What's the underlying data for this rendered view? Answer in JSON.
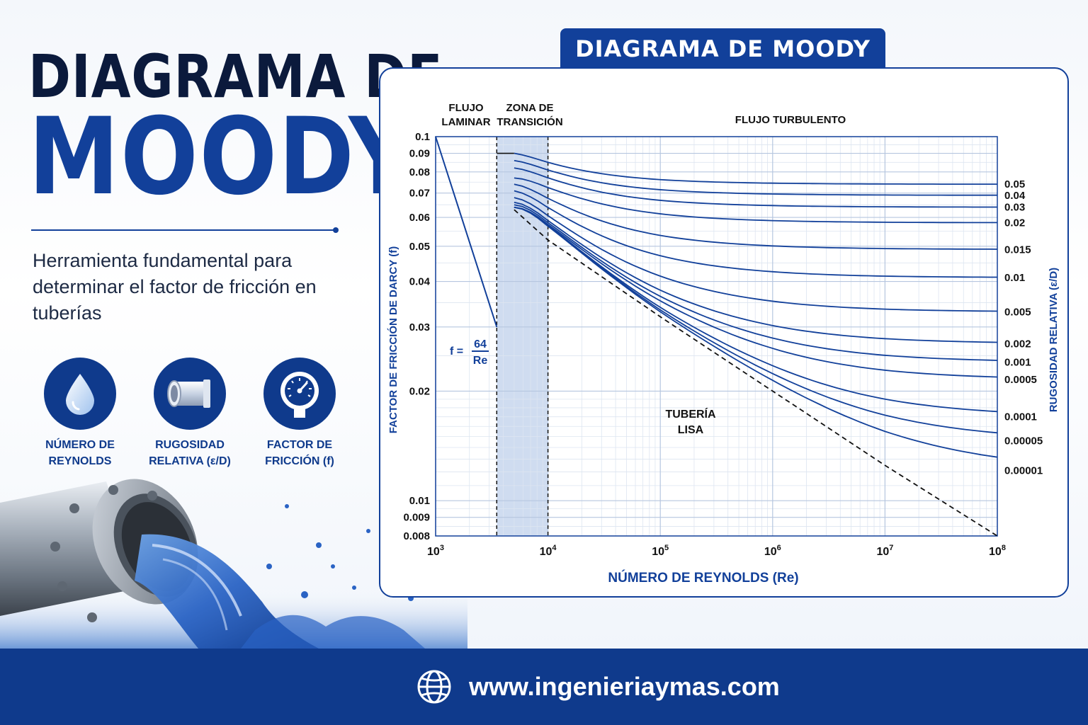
{
  "page": {
    "title_line1": "DIAGRAMA DE",
    "title_line2": "MOODY",
    "subtitle": "Herramienta fundamental para determinar el factor de fricción en tuberías"
  },
  "features": [
    {
      "label_1": "NÚMERO DE",
      "label_2": "REYNOLDS",
      "icon": "water-drop-icon"
    },
    {
      "label_1": "RUGOSIDAD",
      "label_2": "RELATIVA (ε/D)",
      "icon": "pipe-icon"
    },
    {
      "label_1": "FACTOR DE",
      "label_2": "FRICCIÓN (f)",
      "icon": "pressure-gauge-icon"
    }
  ],
  "footer": {
    "url": "www.ingenieriaymas.com",
    "icon": "globe-icon"
  },
  "colors": {
    "primary": "#12409a",
    "dark": "#0b1a3c",
    "transition_zone": "#cfdcf0"
  },
  "chart_data": {
    "type": "line",
    "title": "DIAGRAMA DE MOODY",
    "xlabel": "NÚMERO DE REYNOLDS (Re)",
    "ylabel": "FACTOR DE FRICCIÓN DE DARCY (f)",
    "right_label": "RUGOSIDAD RELATIVA (ε/D)",
    "x_scale": "log",
    "y_scale": "log",
    "xlim": [
      1000,
      100000000
    ],
    "ylim": [
      0.008,
      0.1
    ],
    "grid": true,
    "x_ticks": [
      {
        "value": 1000,
        "base": "10",
        "exp": "3"
      },
      {
        "value": 10000,
        "base": "10",
        "exp": "4"
      },
      {
        "value": 100000,
        "base": "10",
        "exp": "5"
      },
      {
        "value": 1000000,
        "base": "10",
        "exp": "6"
      },
      {
        "value": 10000000,
        "base": "10",
        "exp": "7"
      },
      {
        "value": 100000000,
        "base": "10",
        "exp": "8"
      }
    ],
    "y_ticks": [
      {
        "value": 0.1,
        "label": "0.1"
      },
      {
        "value": 0.09,
        "label": "0.09"
      },
      {
        "value": 0.08,
        "label": "0.08"
      },
      {
        "value": 0.07,
        "label": "0.07"
      },
      {
        "value": 0.06,
        "label": "0.06"
      },
      {
        "value": 0.05,
        "label": "0.05"
      },
      {
        "value": 0.04,
        "label": "0.04"
      },
      {
        "value": 0.03,
        "label": "0.03"
      },
      {
        "value": 0.02,
        "label": "0.02"
      },
      {
        "value": 0.01,
        "label": "0.01"
      },
      {
        "value": 0.009,
        "label": "0.009"
      },
      {
        "value": 0.008,
        "label": "0.008"
      }
    ],
    "zones": [
      {
        "name_1": "FLUJO",
        "name_2": "LAMINAR"
      },
      {
        "name_1": "ZONA DE",
        "name_2": "TRANSICIÓN",
        "re_from": 3500,
        "re_to": 10000
      },
      {
        "name_1": "FLUJO TURBULENTO",
        "name_2": ""
      }
    ],
    "laminar": {
      "formula_lhs": "f =",
      "formula_num": "64",
      "formula_den": "Re",
      "x": [
        1000,
        3500
      ],
      "y": [
        0.1,
        0.03
      ]
    },
    "smooth_pipe": {
      "label_1": "TUBERÍA",
      "label_2": "LISA",
      "x": [
        5000,
        10000,
        100000,
        1000000,
        10000000,
        100000000
      ],
      "y": [
        0.063,
        0.052,
        0.032,
        0.02,
        0.0125,
        0.008
      ]
    },
    "series": [
      {
        "name": "0.05",
        "re_start": 5000,
        "f_start": 0.09,
        "f_end": 0.074
      },
      {
        "name": "0.04",
        "re_start": 5000,
        "f_start": 0.086,
        "f_end": 0.069
      },
      {
        "name": "0.03",
        "re_start": 5000,
        "f_start": 0.082,
        "f_end": 0.064
      },
      {
        "name": "0.02",
        "re_start": 5000,
        "f_start": 0.077,
        "f_end": 0.058
      },
      {
        "name": "0.015",
        "re_start": 5000,
        "f_start": 0.074,
        "f_end": 0.049
      },
      {
        "name": "0.01",
        "re_start": 5000,
        "f_start": 0.071,
        "f_end": 0.041
      },
      {
        "name": "0.005",
        "re_start": 5000,
        "f_start": 0.068,
        "f_end": 0.033
      },
      {
        "name": "0.002",
        "re_start": 5000,
        "f_start": 0.066,
        "f_end": 0.027
      },
      {
        "name": "0.001",
        "re_start": 5000,
        "f_start": 0.065,
        "f_end": 0.024
      },
      {
        "name": "0.0005",
        "re_start": 5000,
        "f_start": 0.064,
        "f_end": 0.0215
      },
      {
        "name": "0.0001",
        "re_start": 5000,
        "f_start": 0.064,
        "f_end": 0.017
      },
      {
        "name": "0.00005",
        "re_start": 5000,
        "f_start": 0.064,
        "f_end": 0.0146
      },
      {
        "name": "0.00001",
        "re_start": 5000,
        "f_start": 0.064,
        "f_end": 0.0121
      }
    ]
  }
}
